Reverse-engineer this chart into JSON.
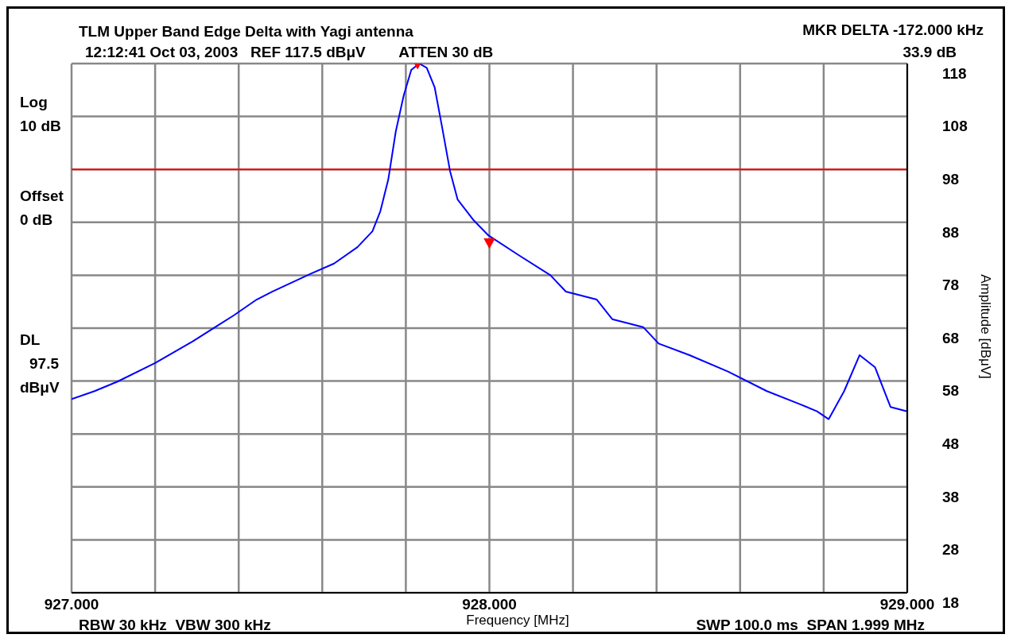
{
  "chart_data": {
    "type": "line",
    "title": "TLM Upper Band Edge Delta with Yagi antenna",
    "subtitle": "12:12:41 Oct 03, 2003   REF 117.5 dBμV        ATTEN 30 dB",
    "xlabel": "Frequency [MHz]",
    "ylabel": "Amplitude [dBμV]",
    "annotations": [
      "Log",
      "10 dB",
      "Offset",
      "0 dB",
      "DL",
      "97.5",
      "dBμV",
      "MKR DELTA -172.000 kHz",
      "33.9 dB",
      "RBW 30 kHz  VBW 300 kHz",
      "SWP 100.0 ms  SPAN 1.999 MHz"
    ],
    "series": [
      {
        "color": "#0000ff",
        "marker": "none",
        "line_style": "solid",
        "x": [
          927.0,
          927.055,
          927.11,
          927.2,
          927.29,
          927.35,
          927.388,
          927.443,
          927.48,
          927.573,
          927.628,
          927.684,
          927.72,
          927.739,
          927.758,
          927.776,
          927.795,
          927.813,
          927.832,
          927.85,
          927.869,
          927.887,
          927.906,
          927.924,
          927.961,
          927.998,
          928.072,
          928.146,
          928.183,
          928.257,
          928.294,
          928.368,
          928.405,
          928.479,
          928.571,
          928.664,
          928.738,
          928.784,
          928.812,
          928.849,
          928.886,
          928.923,
          928.96,
          928.998
        ],
        "values": [
          54.1,
          55.6,
          57.4,
          60.9,
          65.0,
          68.0,
          69.9,
          72.9,
          74.4,
          77.8,
          79.7,
          82.8,
          85.8,
          89.6,
          95.6,
          104.7,
          111.5,
          116.3,
          117.5,
          116.7,
          113.0,
          105.4,
          97.1,
          91.8,
          88.0,
          85.0,
          81.2,
          77.5,
          74.4,
          72.9,
          69.2,
          67.7,
          64.6,
          62.4,
          59.3,
          55.6,
          53.3,
          51.8,
          50.3,
          55.6,
          62.4,
          60.1,
          52.6,
          51.8
        ]
      },
      {
        "type": "scatter",
        "color": "#ff0000",
        "marker": "triangle",
        "x": [
          927.828,
          928.0
        ],
        "values": [
          117.5,
          83.6
        ]
      }
    ],
    "xlim": [
      927,
      929
    ],
    "xticks": [
      {
        "value": 927,
        "label": "927.000"
      },
      {
        "value": 927.2,
        "label": null
      },
      {
        "value": 927.4,
        "label": null
      },
      {
        "value": 927.6,
        "label": null
      },
      {
        "value": 927.8,
        "label": null
      },
      {
        "value": 928,
        "label": "928.000"
      },
      {
        "value": 928.2,
        "label": null
      },
      {
        "value": 928.4,
        "label": null
      },
      {
        "value": 928.6,
        "label": null
      },
      {
        "value": 928.8,
        "label": null
      },
      {
        "value": 929,
        "label": "929.000"
      }
    ],
    "ylim": [
      17.5,
      117.5
    ],
    "yticks": [
      {
        "value": 17.5,
        "label": "18"
      },
      {
        "value": 27.5,
        "label": "28"
      },
      {
        "value": 37.5,
        "label": "38"
      },
      {
        "value": 47.5,
        "label": "48"
      },
      {
        "value": 57.5,
        "label": "58"
      },
      {
        "value": 67.5,
        "label": "68"
      },
      {
        "value": 77.5,
        "label": "78"
      },
      {
        "value": 87.5,
        "label": "88"
      },
      {
        "value": 97.5,
        "label": "98"
      },
      {
        "value": 107.5,
        "label": "108"
      },
      {
        "value": 117.5,
        "label": "118"
      }
    ],
    "grid": true,
    "legend": false,
    "ref_lines": [
      {
        "axis": "y",
        "value": 97.5,
        "color": "#ff0000",
        "line_style": "solid"
      }
    ]
  }
}
